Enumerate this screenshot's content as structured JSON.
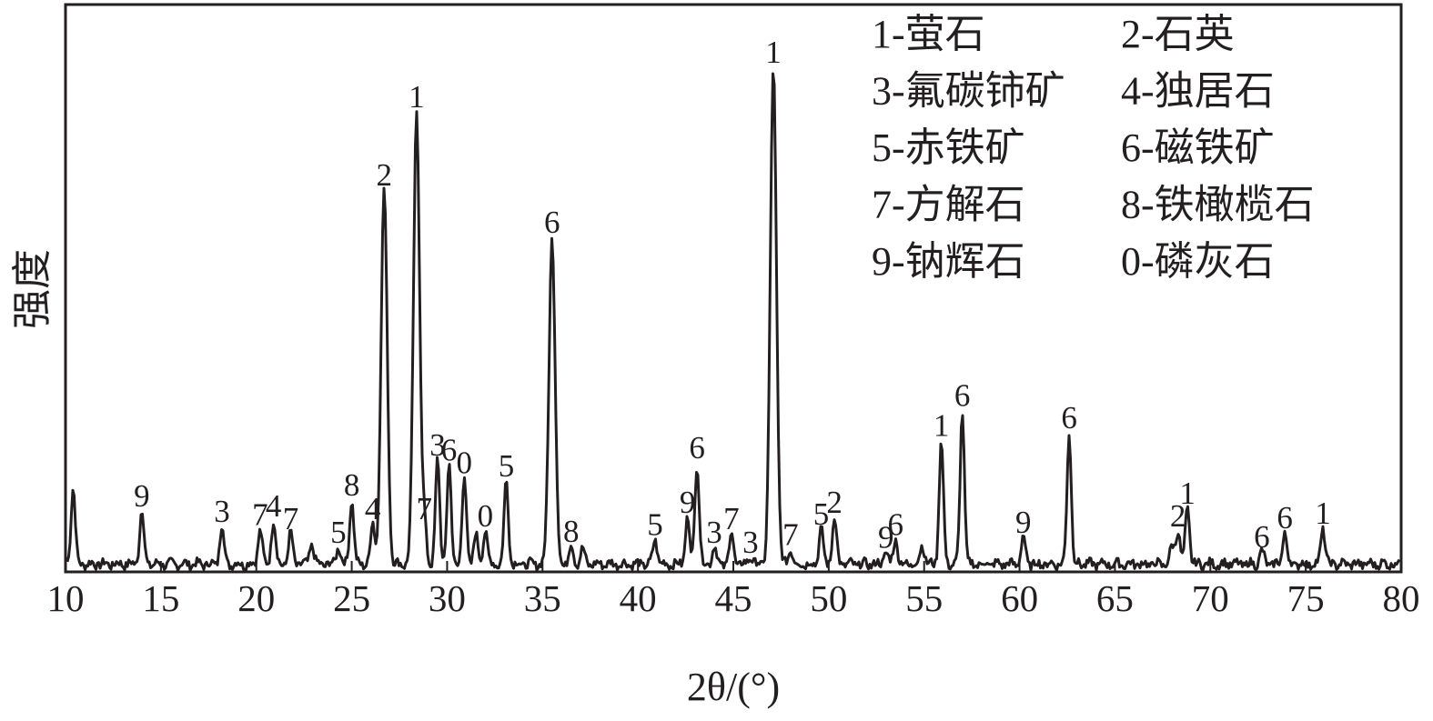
{
  "chart_data": {
    "type": "line",
    "title": "",
    "xlabel": "2θ/(°)",
    "ylabel": "强度",
    "xlim": [
      10,
      80
    ],
    "ylim": [
      0,
      100
    ],
    "x_ticks": [
      "10",
      "15",
      "20",
      "25",
      "30",
      "35",
      "40",
      "45",
      "50",
      "55",
      "60",
      "65",
      "70",
      "75",
      "80"
    ],
    "grid": false,
    "legend_placement": "top-right",
    "line_color": "#231f20",
    "legend": [
      {
        "key": "1",
        "label": "1-萤石"
      },
      {
        "key": "2",
        "label": "2-石英"
      },
      {
        "key": "3",
        "label": "3-氟碳铈矿"
      },
      {
        "key": "4",
        "label": "4-独居石"
      },
      {
        "key": "5",
        "label": "5-赤铁矿"
      },
      {
        "key": "6",
        "label": "6-磁铁矿"
      },
      {
        "key": "7",
        "label": "7-方解石"
      },
      {
        "key": "8",
        "label": "8-铁橄榄石"
      },
      {
        "key": "9",
        "label": "9-钠辉石"
      },
      {
        "key": "0",
        "label": "0-磷灰石"
      }
    ],
    "peaks": [
      {
        "x": 10.4,
        "intensity": 15.5,
        "label": ""
      },
      {
        "x": 14.0,
        "intensity": 10.8,
        "label": "9"
      },
      {
        "x": 18.2,
        "intensity": 7.7,
        "label": "3"
      },
      {
        "x": 20.2,
        "intensity": 7.0,
        "label": "7"
      },
      {
        "x": 20.9,
        "intensity": 8.8,
        "label": "4"
      },
      {
        "x": 21.8,
        "intensity": 6.2,
        "label": "7"
      },
      {
        "x": 22.9,
        "intensity": 4.0,
        "label": ""
      },
      {
        "x": 24.3,
        "intensity": 3.5,
        "label": "5"
      },
      {
        "x": 25.0,
        "intensity": 13.0,
        "label": "8"
      },
      {
        "x": 26.1,
        "intensity": 8.2,
        "label": "4"
      },
      {
        "x": 26.7,
        "intensity": 75.3,
        "label": "2"
      },
      {
        "x": 28.4,
        "intensity": 91.0,
        "label": "1"
      },
      {
        "x": 28.8,
        "intensity": 8.2,
        "label": "7"
      },
      {
        "x": 29.5,
        "intensity": 21.0,
        "label": "3"
      },
      {
        "x": 30.1,
        "intensity": 20.0,
        "label": "6"
      },
      {
        "x": 30.9,
        "intensity": 17.5,
        "label": "0"
      },
      {
        "x": 31.5,
        "intensity": 6.0,
        "label": ""
      },
      {
        "x": 32.0,
        "intensity": 6.8,
        "label": "0"
      },
      {
        "x": 33.1,
        "intensity": 16.8,
        "label": "5"
      },
      {
        "x": 35.5,
        "intensity": 65.8,
        "label": "6"
      },
      {
        "x": 36.5,
        "intensity": 3.7,
        "label": "8"
      },
      {
        "x": 37.1,
        "intensity": 3.0,
        "label": ""
      },
      {
        "x": 40.9,
        "intensity": 5.0,
        "label": "5"
      },
      {
        "x": 42.6,
        "intensity": 9.5,
        "label": "9"
      },
      {
        "x": 43.1,
        "intensity": 20.5,
        "label": "6"
      },
      {
        "x": 44.0,
        "intensity": 3.5,
        "label": "3"
      },
      {
        "x": 44.9,
        "intensity": 6.2,
        "label": "7"
      },
      {
        "x": 45.9,
        "intensity": 1.5,
        "label": "3"
      },
      {
        "x": 47.1,
        "intensity": 100,
        "label": "1"
      },
      {
        "x": 48.0,
        "intensity": 3.0,
        "label": "7"
      },
      {
        "x": 49.6,
        "intensity": 7.1,
        "label": "5"
      },
      {
        "x": 50.3,
        "intensity": 9.5,
        "label": "2"
      },
      {
        "x": 53.0,
        "intensity": 2.5,
        "label": "9"
      },
      {
        "x": 53.5,
        "intensity": 5.0,
        "label": "6"
      },
      {
        "x": 54.9,
        "intensity": 4.0,
        "label": ""
      },
      {
        "x": 55.9,
        "intensity": 25.0,
        "label": "1"
      },
      {
        "x": 57.0,
        "intensity": 31.0,
        "label": "6"
      },
      {
        "x": 60.2,
        "intensity": 5.5,
        "label": "9"
      },
      {
        "x": 62.6,
        "intensity": 26.5,
        "label": "6"
      },
      {
        "x": 68.0,
        "intensity": 3.5,
        "label": ""
      },
      {
        "x": 68.3,
        "intensity": 6.8,
        "label": "2"
      },
      {
        "x": 68.8,
        "intensity": 11.3,
        "label": "1"
      },
      {
        "x": 72.7,
        "intensity": 2.6,
        "label": "6"
      },
      {
        "x": 73.9,
        "intensity": 6.4,
        "label": "6"
      },
      {
        "x": 75.9,
        "intensity": 7.3,
        "label": "1"
      }
    ]
  }
}
